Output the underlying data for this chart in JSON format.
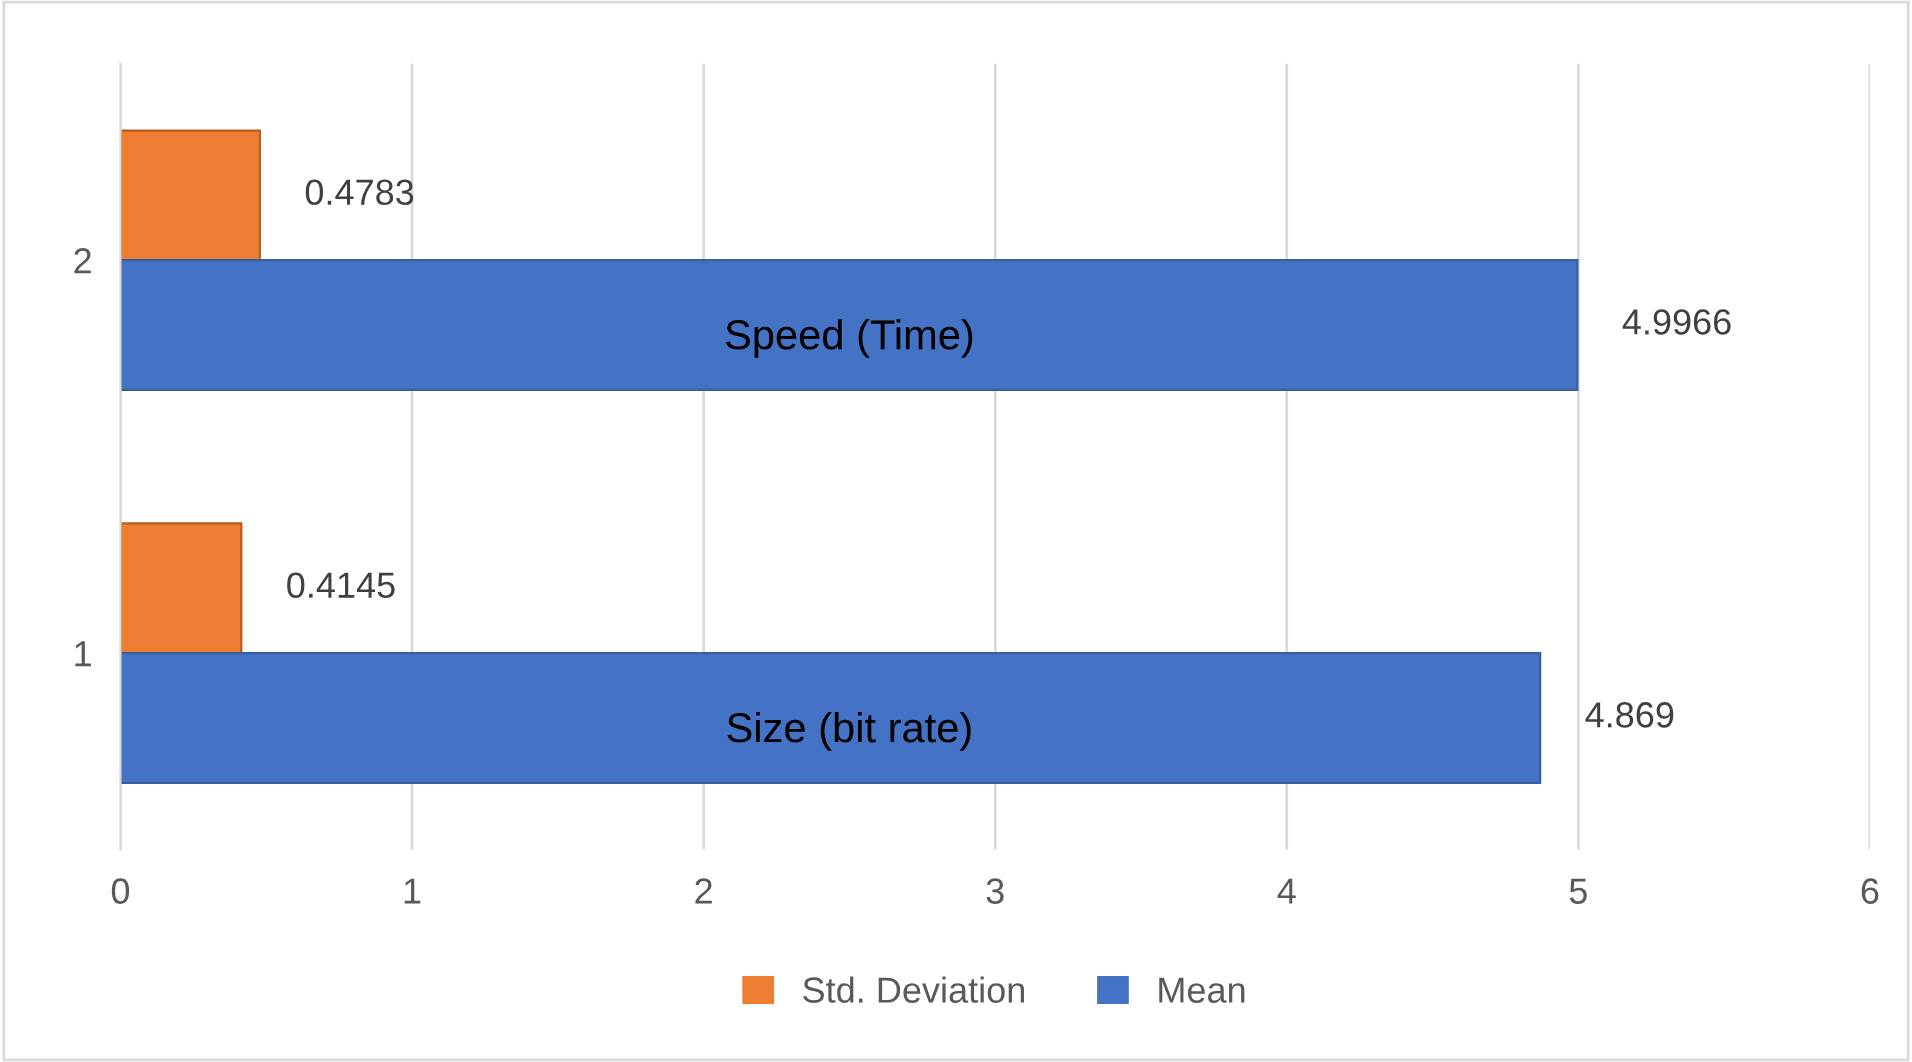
{
  "chart_data": {
    "type": "bar",
    "orientation": "horizontal",
    "categories": [
      "2",
      "1"
    ],
    "series": [
      {
        "name": "Std. Deviation",
        "color": "#ed7d31",
        "values": [
          0.4783,
          0.4145
        ]
      },
      {
        "name": "Mean",
        "color": "#4472c4",
        "values": [
          4.9966,
          4.869
        ]
      }
    ],
    "xlim": [
      0,
      6
    ],
    "xticks": [
      0,
      1,
      2,
      3,
      4,
      5,
      6
    ],
    "grid": "x",
    "legend": "bottom",
    "data_labels": true,
    "annotations": [
      {
        "text": "Speed (Time)",
        "x": 2.5,
        "y": "2"
      },
      {
        "text": "Size (bit rate)",
        "x": 2.5,
        "y": "1"
      }
    ]
  }
}
